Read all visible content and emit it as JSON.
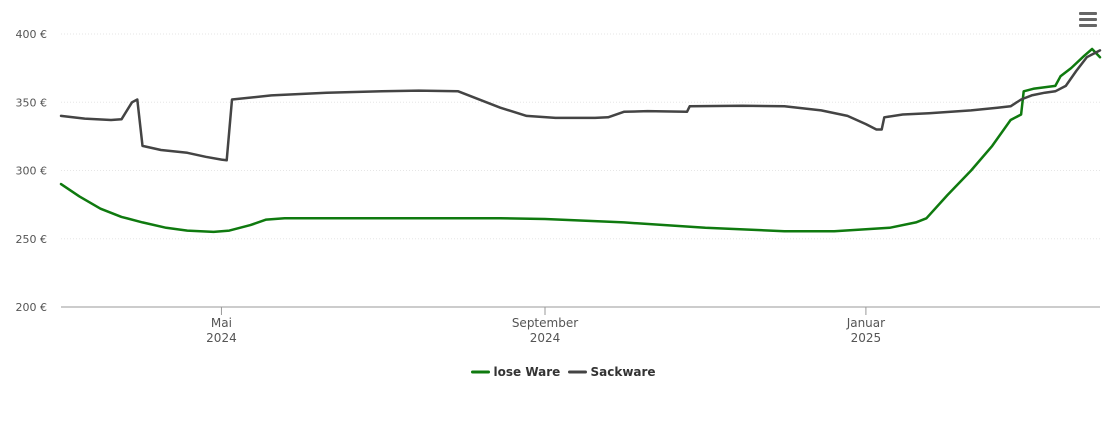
{
  "menu": {
    "icon": "menu-icon"
  },
  "chart_data": {
    "type": "line",
    "y_unit": "€",
    "ylim": [
      200,
      400
    ],
    "y_ticks": [
      {
        "value": 200,
        "label": "200 €"
      },
      {
        "value": 250,
        "label": "250 €"
      },
      {
        "value": 300,
        "label": "300 €"
      },
      {
        "value": 350,
        "label": "350 €"
      },
      {
        "value": 400,
        "label": "400 €"
      }
    ],
    "x_range": [
      "2024-03-01",
      "2025-03-31"
    ],
    "x_ticks": [
      {
        "date": "2024-05-01",
        "label": [
          "Mai",
          "2024"
        ]
      },
      {
        "date": "2024-09-01",
        "label": [
          "September",
          "2024"
        ]
      },
      {
        "date": "2025-01-01",
        "label": [
          "Januar",
          "2025"
        ]
      }
    ],
    "grid": true,
    "legend": "bottom-center",
    "series": [
      {
        "name": "lose Ware",
        "color": "#0f7a0f",
        "points": [
          [
            "2024-03-01",
            290
          ],
          [
            "2024-03-08",
            281
          ],
          [
            "2024-03-16",
            272
          ],
          [
            "2024-03-24",
            266
          ],
          [
            "2024-04-01",
            262
          ],
          [
            "2024-04-10",
            258
          ],
          [
            "2024-04-18",
            256
          ],
          [
            "2024-04-28",
            255
          ],
          [
            "2024-05-04",
            256
          ],
          [
            "2024-05-12",
            260
          ],
          [
            "2024-05-18",
            264
          ],
          [
            "2024-05-25",
            265
          ],
          [
            "2024-06-15",
            265
          ],
          [
            "2024-07-15",
            265
          ],
          [
            "2024-08-15",
            265
          ],
          [
            "2024-09-01",
            264.5
          ],
          [
            "2024-10-01",
            262
          ],
          [
            "2024-11-01",
            258
          ],
          [
            "2024-12-01",
            255.5
          ],
          [
            "2024-12-20",
            255.5
          ],
          [
            "2025-01-10",
            258
          ],
          [
            "2025-01-20",
            262
          ],
          [
            "2025-01-24",
            265
          ],
          [
            "2025-02-01",
            282
          ],
          [
            "2025-02-10",
            300
          ],
          [
            "2025-02-18",
            318
          ],
          [
            "2025-02-25",
            337
          ],
          [
            "2025-03-01",
            341
          ],
          [
            "2025-03-02",
            358
          ],
          [
            "2025-03-06",
            360
          ],
          [
            "2025-03-10",
            361
          ],
          [
            "2025-03-14",
            362
          ],
          [
            "2025-03-16",
            369
          ],
          [
            "2025-03-20",
            375
          ],
          [
            "2025-03-25",
            384
          ],
          [
            "2025-03-28",
            389
          ],
          [
            "2025-03-31",
            383
          ]
        ]
      },
      {
        "name": "Sackware",
        "color": "#444444",
        "points": [
          [
            "2024-03-01",
            340
          ],
          [
            "2024-03-10",
            338
          ],
          [
            "2024-03-20",
            337
          ],
          [
            "2024-03-24",
            337.5
          ],
          [
            "2024-03-28",
            350
          ],
          [
            "2024-03-30",
            352
          ],
          [
            "2024-04-01",
            318
          ],
          [
            "2024-04-08",
            315
          ],
          [
            "2024-04-18",
            313
          ],
          [
            "2024-04-25",
            310
          ],
          [
            "2024-05-01",
            308
          ],
          [
            "2024-05-03",
            307.5
          ],
          [
            "2024-05-05",
            352
          ],
          [
            "2024-05-20",
            355
          ],
          [
            "2024-06-10",
            357
          ],
          [
            "2024-07-01",
            358
          ],
          [
            "2024-07-15",
            358.5
          ],
          [
            "2024-07-30",
            358
          ],
          [
            "2024-08-15",
            346
          ],
          [
            "2024-08-25",
            340
          ],
          [
            "2024-09-05",
            338.5
          ],
          [
            "2024-09-20",
            338.5
          ],
          [
            "2024-09-25",
            339
          ],
          [
            "2024-10-01",
            343
          ],
          [
            "2024-10-10",
            343.5
          ],
          [
            "2024-10-25",
            343
          ],
          [
            "2024-10-26",
            347
          ],
          [
            "2024-11-15",
            347.5
          ],
          [
            "2024-12-01",
            347
          ],
          [
            "2024-12-15",
            344
          ],
          [
            "2024-12-25",
            340
          ],
          [
            "2025-01-01",
            334
          ],
          [
            "2025-01-05",
            330
          ],
          [
            "2025-01-07",
            330
          ],
          [
            "2025-01-08",
            339
          ],
          [
            "2025-01-15",
            341
          ],
          [
            "2025-01-25",
            342
          ],
          [
            "2025-02-10",
            344
          ],
          [
            "2025-02-20",
            346
          ],
          [
            "2025-02-25",
            347
          ],
          [
            "2025-03-01",
            352
          ],
          [
            "2025-03-05",
            355
          ],
          [
            "2025-03-10",
            357
          ],
          [
            "2025-03-14",
            358
          ],
          [
            "2025-03-18",
            362
          ],
          [
            "2025-03-22",
            373
          ],
          [
            "2025-03-26",
            383
          ],
          [
            "2025-03-29",
            386
          ],
          [
            "2025-03-31",
            388
          ]
        ]
      }
    ]
  }
}
